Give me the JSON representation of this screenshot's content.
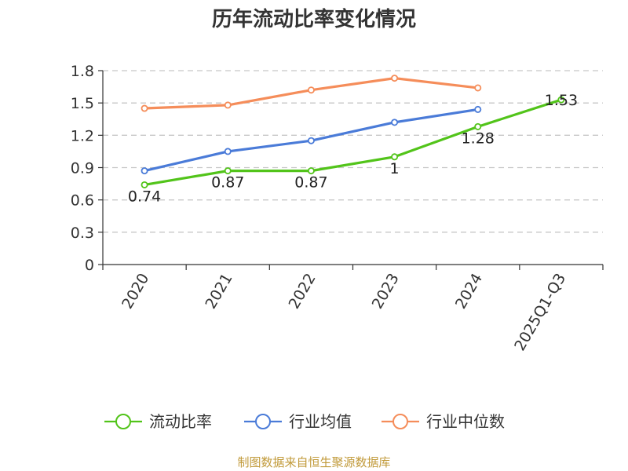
{
  "chart_data": {
    "type": "line",
    "title": "历年流动比率变化情况",
    "categories": [
      "2020",
      "2021",
      "2022",
      "2023",
      "2024",
      "2025Q1-Q3"
    ],
    "ylim": [
      0,
      1.8
    ],
    "yticks": [
      0,
      0.3,
      0.6,
      0.9,
      1.2,
      1.5,
      1.8
    ],
    "ytick_labels": [
      "0",
      "0.3",
      "0.6",
      "0.9",
      "1.2",
      "1.5",
      "1.8"
    ],
    "grid": true,
    "legend_position": "bottom",
    "series": [
      {
        "name": "流动比率",
        "color": "#52c41a",
        "values": [
          0.74,
          0.87,
          0.87,
          1,
          1.28,
          1.53
        ],
        "labels": [
          "0.74",
          "0.87",
          "0.87",
          "1",
          "1.28",
          "1.53"
        ]
      },
      {
        "name": "行业均值",
        "color": "#4a7bd8",
        "values": [
          0.87,
          1.05,
          1.15,
          1.32,
          1.44,
          null
        ]
      },
      {
        "name": "行业中位数",
        "color": "#f58d5a",
        "values": [
          1.45,
          1.48,
          1.62,
          1.73,
          1.64,
          null
        ]
      }
    ]
  },
  "footer": {
    "source": "制图数据来自恒生聚源数据库"
  }
}
